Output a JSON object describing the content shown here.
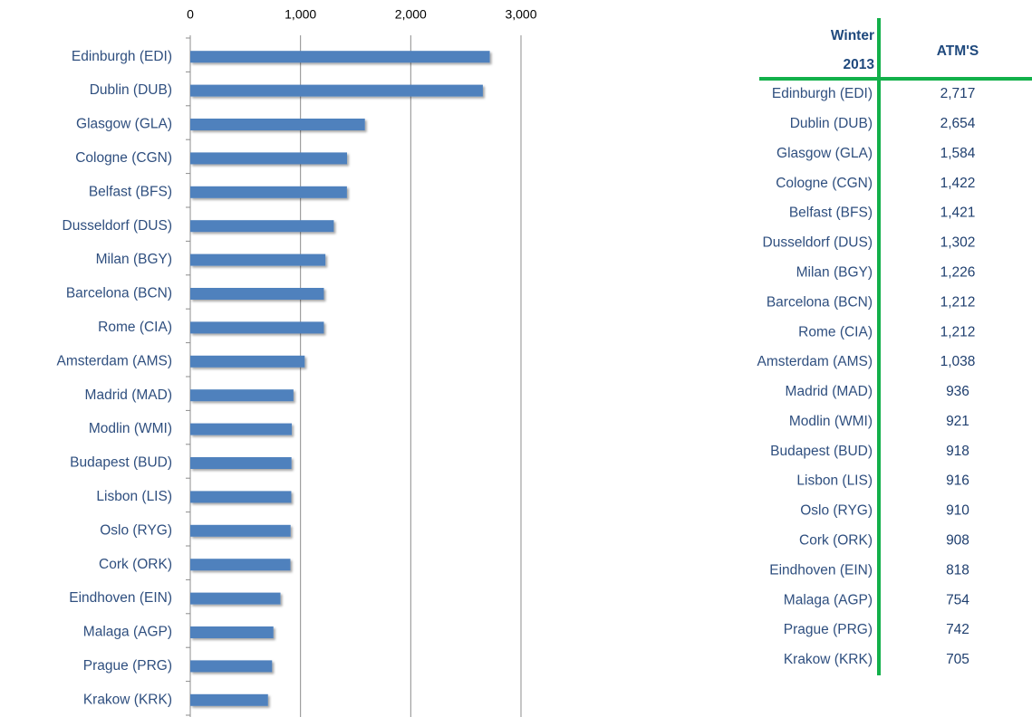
{
  "chart_data": {
    "type": "bar",
    "orientation": "horizontal",
    "categories": [
      "Edinburgh (EDI)",
      "Dublin (DUB)",
      "Glasgow (GLA)",
      "Cologne (CGN)",
      "Belfast (BFS)",
      "Dusseldorf (DUS)",
      "Milan (BGY)",
      "Barcelona (BCN)",
      "Rome (CIA)",
      "Amsterdam (AMS)",
      "Madrid (MAD)",
      "Modlin (WMI)",
      "Budapest (BUD)",
      "Lisbon (LIS)",
      "Oslo (RYG)",
      "Cork (ORK)",
      "Eindhoven (EIN)",
      "Malaga (AGP)",
      "Prague (PRG)",
      "Krakow (KRK)"
    ],
    "values": [
      2717,
      2654,
      1584,
      1422,
      1421,
      1302,
      1226,
      1212,
      1212,
      1038,
      936,
      921,
      918,
      916,
      910,
      908,
      818,
      754,
      742,
      705
    ],
    "color": "#4f81bd",
    "xlim": [
      0,
      3000
    ],
    "xticks": [
      0,
      {
        "value": 1000,
        "label": "1,000"
      },
      {
        "value": 2000,
        "label": "2,000"
      },
      {
        "value": 3000,
        "label": "3,000"
      }
    ],
    "grid": true
  },
  "table": {
    "header": [
      "Winter 2013",
      "ATM'S"
    ],
    "rows": [
      [
        "Edinburgh (EDI)",
        "2,717"
      ],
      [
        "Dublin (DUB)",
        "2,654"
      ],
      [
        "Glasgow (GLA)",
        "1,584"
      ],
      [
        "Cologne (CGN)",
        "1,422"
      ],
      [
        "Belfast (BFS)",
        "1,421"
      ],
      [
        "Dusseldorf (DUS)",
        "1,302"
      ],
      [
        "Milan (BGY)",
        "1,226"
      ],
      [
        "Barcelona (BCN)",
        "1,212"
      ],
      [
        "Rome (CIA)",
        "1,212"
      ],
      [
        "Amsterdam (AMS)",
        "1,038"
      ],
      [
        "Madrid (MAD)",
        "936"
      ],
      [
        "Modlin (WMI)",
        "921"
      ],
      [
        "Budapest (BUD)",
        "918"
      ],
      [
        "Lisbon (LIS)",
        "916"
      ],
      [
        "Oslo (RYG)",
        "910"
      ],
      [
        "Cork (ORK)",
        "908"
      ],
      [
        "Eindhoven (EIN)",
        "818"
      ],
      [
        "Malaga (AGP)",
        "754"
      ],
      [
        "Prague (PRG)",
        "742"
      ],
      [
        "Krakow (KRK)",
        "705"
      ]
    ]
  }
}
